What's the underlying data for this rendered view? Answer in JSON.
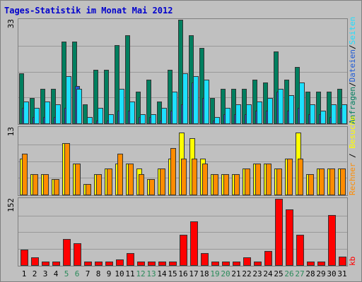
{
  "title": "Tages-Statistik im Monat Mai 2012",
  "colors": {
    "background": "#c0c0c0",
    "border": "#808080",
    "title": "#0000cc",
    "anfragen": "#007f5f",
    "dateien": "#1f5bd6",
    "seiten": "#1ee0ff",
    "besuche": "#ffff00",
    "rechner": "#ff8c00",
    "kb": "#ff0000",
    "weekend_label": "#2a8a5a"
  },
  "panel1": {
    "max_label": "33",
    "labels": [
      "Anfragen",
      "Dateien",
      "Seiten"
    ]
  },
  "panel2": {
    "max_label": "13",
    "labels": [
      "Besuche",
      "Rechner"
    ]
  },
  "panel3": {
    "max_label": "152",
    "labels": [
      "kb"
    ]
  },
  "chart_data": {
    "type": "bar",
    "title": "Tages-Statistik im Monat Mai 2012",
    "x": [
      1,
      2,
      3,
      4,
      5,
      6,
      7,
      8,
      9,
      10,
      11,
      12,
      13,
      14,
      15,
      16,
      17,
      18,
      19,
      20,
      21,
      22,
      23,
      24,
      25,
      26,
      27,
      28,
      29,
      30,
      31
    ],
    "weekend_days": [
      5,
      6,
      12,
      13,
      19,
      20,
      26,
      27
    ],
    "series": [
      {
        "name": "Anfragen",
        "panel": 1,
        "ylim": [
          0,
          33
        ],
        "values": [
          16,
          8,
          11,
          11,
          26,
          26,
          6,
          17,
          17,
          25,
          28,
          10,
          14,
          7,
          17,
          33,
          28,
          24,
          8,
          11,
          11,
          11,
          14,
          13,
          23,
          14,
          18,
          10,
          10,
          10,
          11
        ]
      },
      {
        "name": "Dateien",
        "panel": 1,
        "ylim": [
          0,
          33
        ],
        "values": [
          5,
          2,
          2,
          2,
          5,
          12,
          0,
          1,
          1,
          4,
          4,
          2,
          2,
          1,
          4,
          6,
          13,
          8,
          1,
          3,
          3,
          3,
          4,
          4,
          10,
          4,
          5,
          3,
          3,
          2,
          5
        ]
      },
      {
        "name": "Seiten",
        "panel": 1,
        "ylim": [
          0,
          33
        ],
        "values": [
          7,
          5,
          7,
          6,
          15,
          11,
          2,
          5,
          3,
          11,
          7,
          3,
          3,
          5,
          10,
          16,
          15,
          14,
          2,
          5,
          6,
          6,
          7,
          8,
          11,
          9,
          13,
          6,
          4,
          6,
          6
        ]
      },
      {
        "name": "Besuche",
        "panel": 2,
        "ylim": [
          0,
          13
        ],
        "values": [
          7,
          4,
          4,
          3,
          10,
          6,
          2,
          4,
          5,
          6,
          6,
          5,
          3,
          5,
          7,
          12,
          11,
          7,
          4,
          4,
          4,
          5,
          6,
          6,
          5,
          7,
          12,
          4,
          5,
          5,
          5
        ]
      },
      {
        "name": "Rechner",
        "panel": 2,
        "ylim": [
          0,
          13
        ],
        "values": [
          8,
          4,
          4,
          3,
          10,
          6,
          2,
          4,
          5,
          8,
          6,
          4,
          3,
          5,
          9,
          7,
          7,
          6,
          4,
          4,
          4,
          5,
          6,
          6,
          5,
          7,
          7,
          4,
          5,
          5,
          5
        ]
      },
      {
        "name": "kb",
        "panel": 3,
        "ylim": [
          0,
          152
        ],
        "values": [
          35,
          18,
          8,
          8,
          60,
          50,
          8,
          8,
          8,
          13,
          27,
          8,
          8,
          8,
          8,
          70,
          100,
          28,
          8,
          8,
          8,
          18,
          8,
          33,
          152,
          128,
          70,
          8,
          8,
          115,
          20
        ]
      }
    ]
  }
}
